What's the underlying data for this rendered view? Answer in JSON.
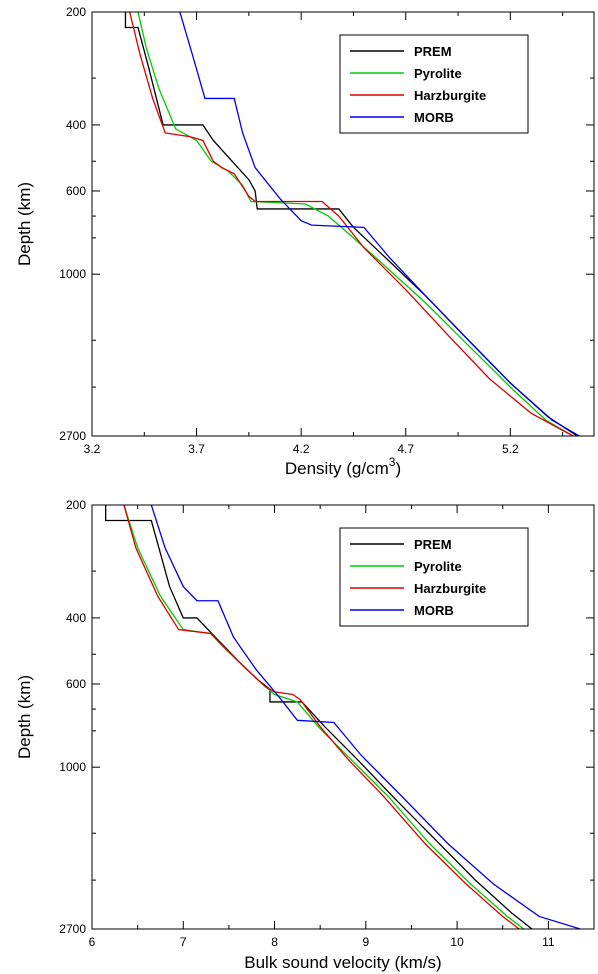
{
  "chart_data": [
    {
      "type": "line",
      "xlabel": "Density (g/cm",
      "xlabel_sup": "3",
      "xlabel_close": ")",
      "ylabel": "Depth (km)",
      "xlim": [
        3.2,
        5.6
      ],
      "ylim": [
        200,
        2700
      ],
      "y_scale": "log",
      "y_inverted": true,
      "x_ticks": [
        3.2,
        3.7,
        4.2,
        4.7,
        5.2
      ],
      "x_tick_labels": [
        "3.2",
        "3.7",
        "4.2",
        "4.7",
        "5.2"
      ],
      "y_ticks": [
        200,
        400,
        600,
        1000,
        2700
      ],
      "y_tick_labels": [
        "200",
        "400",
        "600",
        "1000",
        "2700"
      ],
      "legend": "top-right",
      "series": [
        {
          "name": "PREM",
          "color": "#000000",
          "points": [
            [
              3.36,
              200
            ],
            [
              3.36,
              220
            ],
            [
              3.42,
              220
            ],
            [
              3.47,
              280
            ],
            [
              3.54,
              400
            ],
            [
              3.73,
              400
            ],
            [
              3.78,
              440
            ],
            [
              3.87,
              500
            ],
            [
              3.95,
              560
            ],
            [
              3.98,
              600
            ],
            [
              3.99,
              670
            ],
            [
              4.38,
              670
            ],
            [
              4.45,
              750
            ],
            [
              4.6,
              900
            ],
            [
              4.8,
              1150
            ],
            [
              5.0,
              1500
            ],
            [
              5.2,
              1950
            ],
            [
              5.38,
              2400
            ],
            [
              5.52,
              2700
            ]
          ]
        },
        {
          "name": "Pyrolite",
          "color": "#00cc00",
          "points": [
            [
              3.42,
              200
            ],
            [
              3.46,
              250
            ],
            [
              3.52,
              320
            ],
            [
              3.6,
              410
            ],
            [
              3.7,
              440
            ],
            [
              3.77,
              500
            ],
            [
              3.85,
              530
            ],
            [
              3.92,
              580
            ],
            [
              3.96,
              640
            ],
            [
              4.22,
              650
            ],
            [
              4.33,
              700
            ],
            [
              4.45,
              800
            ],
            [
              4.6,
              950
            ],
            [
              4.8,
              1200
            ],
            [
              5.0,
              1550
            ],
            [
              5.2,
              2000
            ],
            [
              5.37,
              2450
            ],
            [
              5.5,
              2700
            ]
          ]
        },
        {
          "name": "Harzburgite",
          "color": "#dd0000",
          "points": [
            [
              3.38,
              200
            ],
            [
              3.43,
              260
            ],
            [
              3.49,
              340
            ],
            [
              3.55,
              420
            ],
            [
              3.67,
              430
            ],
            [
              3.73,
              440
            ],
            [
              3.78,
              500
            ],
            [
              3.82,
              520
            ],
            [
              3.88,
              540
            ],
            [
              3.95,
              620
            ],
            [
              3.98,
              640
            ],
            [
              4.3,
              640
            ],
            [
              4.38,
              700
            ],
            [
              4.5,
              850
            ],
            [
              4.7,
              1100
            ],
            [
              4.9,
              1450
            ],
            [
              5.1,
              1900
            ],
            [
              5.3,
              2350
            ],
            [
              5.5,
              2700
            ]
          ]
        },
        {
          "name": "MORB",
          "color": "#0000ee",
          "points": [
            [
              3.62,
              200
            ],
            [
              3.68,
              260
            ],
            [
              3.74,
              340
            ],
            [
              3.88,
              340
            ],
            [
              3.92,
              420
            ],
            [
              3.98,
              520
            ],
            [
              4.1,
              630
            ],
            [
              4.2,
              720
            ],
            [
              4.25,
              740
            ],
            [
              4.5,
              750
            ],
            [
              4.62,
              900
            ],
            [
              4.8,
              1150
            ],
            [
              5.0,
              1500
            ],
            [
              5.2,
              1950
            ],
            [
              5.4,
              2450
            ],
            [
              5.53,
              2700
            ]
          ]
        }
      ]
    },
    {
      "type": "line",
      "xlabel": "Bulk sound velocity (km/s)",
      "ylabel": "Depth (km)",
      "xlim": [
        6,
        11.5
      ],
      "ylim": [
        200,
        2700
      ],
      "y_scale": "log",
      "y_inverted": true,
      "x_ticks": [
        6,
        7,
        8,
        9,
        10,
        11
      ],
      "x_tick_labels": [
        "6",
        "7",
        "8",
        "9",
        "10",
        "11"
      ],
      "y_ticks": [
        200,
        400,
        600,
        1000,
        2700
      ],
      "y_tick_labels": [
        "200",
        "400",
        "600",
        "1000",
        "2700"
      ],
      "legend": "top-right",
      "series": [
        {
          "name": "PREM",
          "color": "#000000",
          "points": [
            [
              6.15,
              200
            ],
            [
              6.15,
              220
            ],
            [
              6.65,
              220
            ],
            [
              6.85,
              330
            ],
            [
              7.0,
              400
            ],
            [
              7.15,
              400
            ],
            [
              7.35,
              450
            ],
            [
              7.6,
              520
            ],
            [
              7.8,
              580
            ],
            [
              7.95,
              620
            ],
            [
              7.95,
              670
            ],
            [
              8.3,
              670
            ],
            [
              8.55,
              780
            ],
            [
              8.9,
              950
            ],
            [
              9.3,
              1200
            ],
            [
              9.75,
              1550
            ],
            [
              10.2,
              2000
            ],
            [
              10.6,
              2450
            ],
            [
              10.82,
              2700
            ]
          ]
        },
        {
          "name": "Pyrolite",
          "color": "#00cc00",
          "points": [
            [
              6.35,
              200
            ],
            [
              6.5,
              260
            ],
            [
              6.75,
              350
            ],
            [
              7.0,
              430
            ],
            [
              7.3,
              440
            ],
            [
              7.45,
              480
            ],
            [
              7.7,
              550
            ],
            [
              7.9,
              610
            ],
            [
              8.0,
              640
            ],
            [
              8.25,
              670
            ],
            [
              8.5,
              790
            ],
            [
              8.85,
              960
            ],
            [
              9.25,
              1200
            ],
            [
              9.7,
              1600
            ],
            [
              10.15,
              2050
            ],
            [
              10.55,
              2500
            ],
            [
              10.73,
              2700
            ]
          ]
        },
        {
          "name": "Harzburgite",
          "color": "#dd0000",
          "points": [
            [
              6.35,
              200
            ],
            [
              6.48,
              260
            ],
            [
              6.72,
              350
            ],
            [
              6.95,
              430
            ],
            [
              7.3,
              440
            ],
            [
              7.45,
              480
            ],
            [
              7.7,
              550
            ],
            [
              7.9,
              610
            ],
            [
              8.0,
              630
            ],
            [
              8.2,
              640
            ],
            [
              8.28,
              660
            ],
            [
              8.5,
              780
            ],
            [
              8.8,
              950
            ],
            [
              9.2,
              1200
            ],
            [
              9.65,
              1600
            ],
            [
              10.1,
              2050
            ],
            [
              10.5,
              2500
            ],
            [
              10.68,
              2700
            ]
          ]
        },
        {
          "name": "MORB",
          "color": "#0000ee",
          "points": [
            [
              6.65,
              200
            ],
            [
              6.8,
              260
            ],
            [
              7.0,
              330
            ],
            [
              7.15,
              360
            ],
            [
              7.38,
              360
            ],
            [
              7.55,
              450
            ],
            [
              7.8,
              550
            ],
            [
              8.05,
              650
            ],
            [
              8.25,
              750
            ],
            [
              8.65,
              760
            ],
            [
              8.95,
              930
            ],
            [
              9.4,
              1200
            ],
            [
              9.9,
              1600
            ],
            [
              10.4,
              2050
            ],
            [
              10.9,
              2500
            ],
            [
              11.35,
              2700
            ]
          ]
        }
      ]
    }
  ]
}
